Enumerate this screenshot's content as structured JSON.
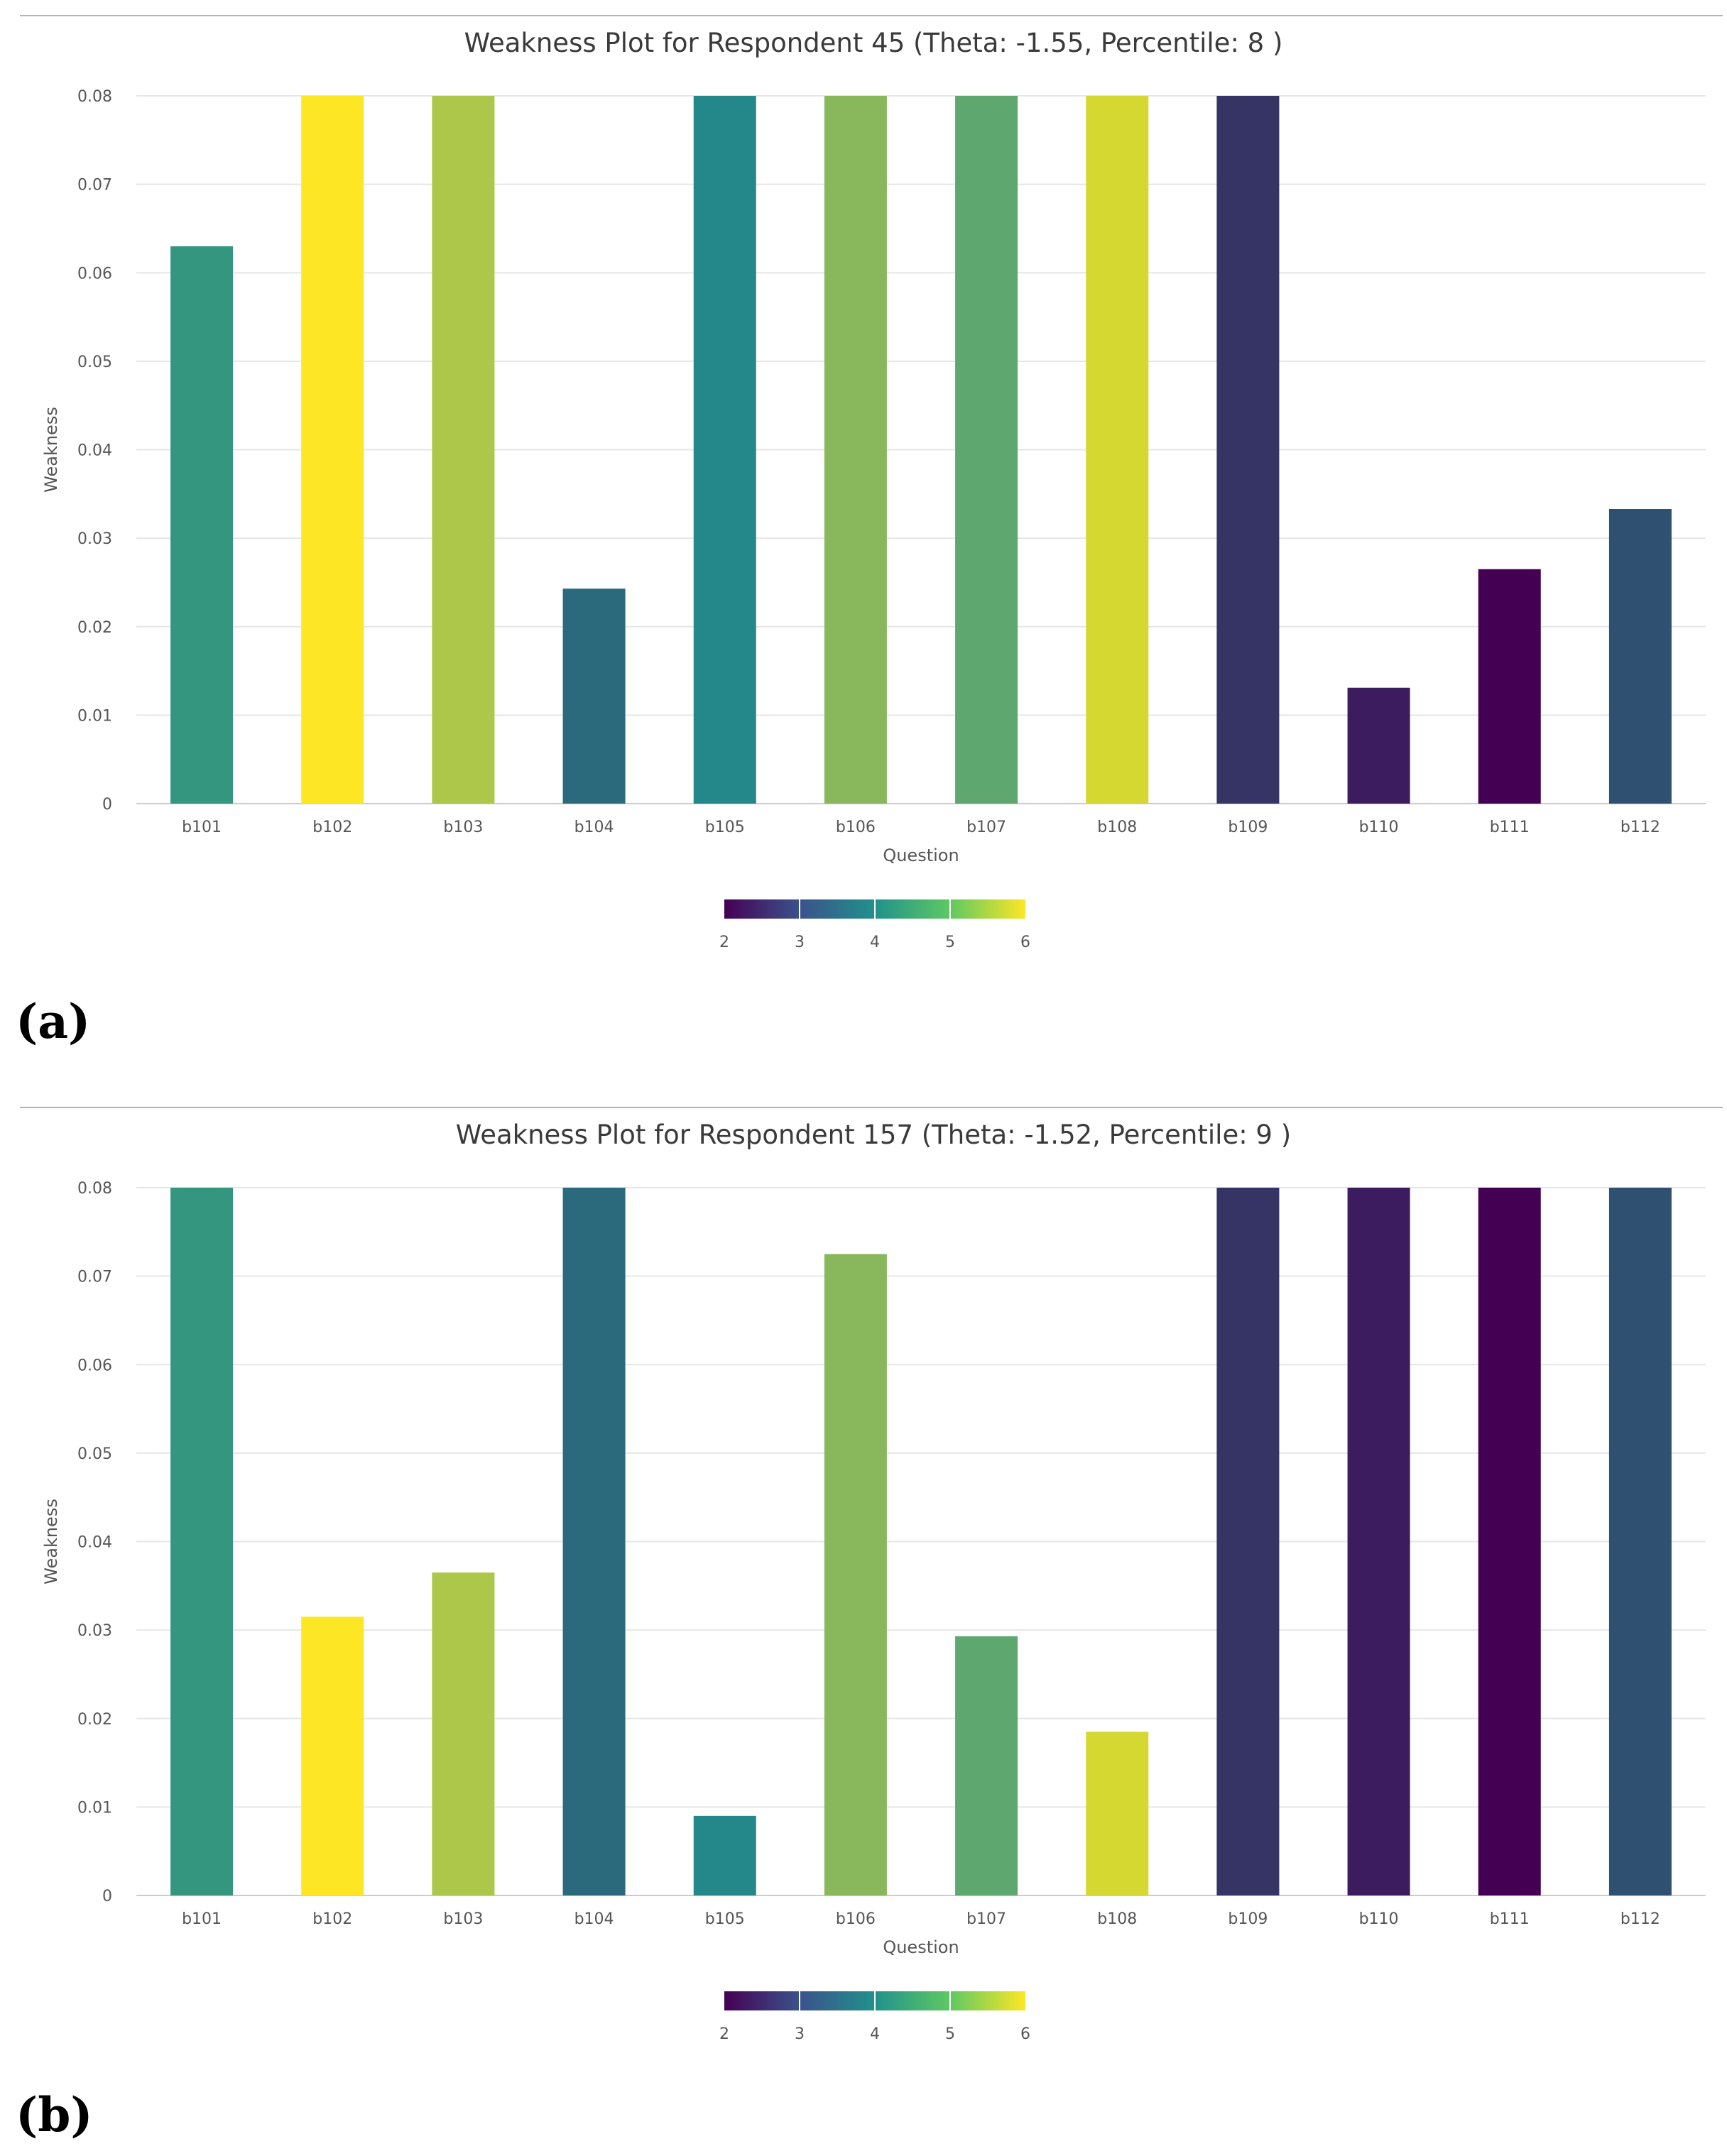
{
  "colorbar_stops": [
    "#440154",
    "#3b528b",
    "#21918c",
    "#5ec962",
    "#fde725"
  ],
  "chart_data": [
    {
      "type": "bar",
      "panel_label": "(a)",
      "title": "Weakness Plot for Respondent 45 (Theta: -1.55, Percentile: 8 )",
      "xlabel": "Question",
      "ylabel": "Weakness",
      "ylim": [
        0,
        0.08
      ],
      "yticks": [
        "0",
        "0.01",
        "0.02",
        "0.03",
        "0.04",
        "0.05",
        "0.06",
        "0.07",
        "0.08"
      ],
      "categories": [
        "b101",
        "b102",
        "b103",
        "b104",
        "b105",
        "b106",
        "b107",
        "b108",
        "b109",
        "b110",
        "b111",
        "b112"
      ],
      "values": [
        0.063,
        0.08,
        0.08,
        0.0243,
        0.08,
        0.08,
        0.08,
        0.08,
        0.08,
        0.0131,
        0.0265,
        0.0333
      ],
      "colors": [
        "#35967f",
        "#fde725",
        "#adc74a",
        "#2a6a7c",
        "#24878a",
        "#88b75c",
        "#5ea76e",
        "#d6d832",
        "#353465",
        "#3c1b5e",
        "#440154",
        "#305071"
      ],
      "colorbar": {
        "min": 2,
        "max": 6,
        "ticks": [
          "2",
          "3",
          "4",
          "5",
          "6"
        ]
      }
    },
    {
      "type": "bar",
      "panel_label": "(b)",
      "title": "Weakness Plot for Respondent 157 (Theta: -1.52, Percentile: 9 )",
      "xlabel": "Question",
      "ylabel": "Weakness",
      "ylim": [
        0,
        0.08
      ],
      "yticks": [
        "0",
        "0.01",
        "0.02",
        "0.03",
        "0.04",
        "0.05",
        "0.06",
        "0.07",
        "0.08"
      ],
      "categories": [
        "b101",
        "b102",
        "b103",
        "b104",
        "b105",
        "b106",
        "b107",
        "b108",
        "b109",
        "b110",
        "b111",
        "b112"
      ],
      "values": [
        0.08,
        0.0315,
        0.0365,
        0.08,
        0.009,
        0.0725,
        0.0293,
        0.0185,
        0.08,
        0.08,
        0.08,
        0.08
      ],
      "colors": [
        "#35967f",
        "#fde725",
        "#adc74a",
        "#2a6a7c",
        "#24878a",
        "#88b75c",
        "#5ea76e",
        "#d6d832",
        "#353465",
        "#3c1b5e",
        "#440154",
        "#305071"
      ],
      "colorbar": {
        "min": 2,
        "max": 6,
        "ticks": [
          "2",
          "3",
          "4",
          "5",
          "6"
        ]
      }
    }
  ]
}
